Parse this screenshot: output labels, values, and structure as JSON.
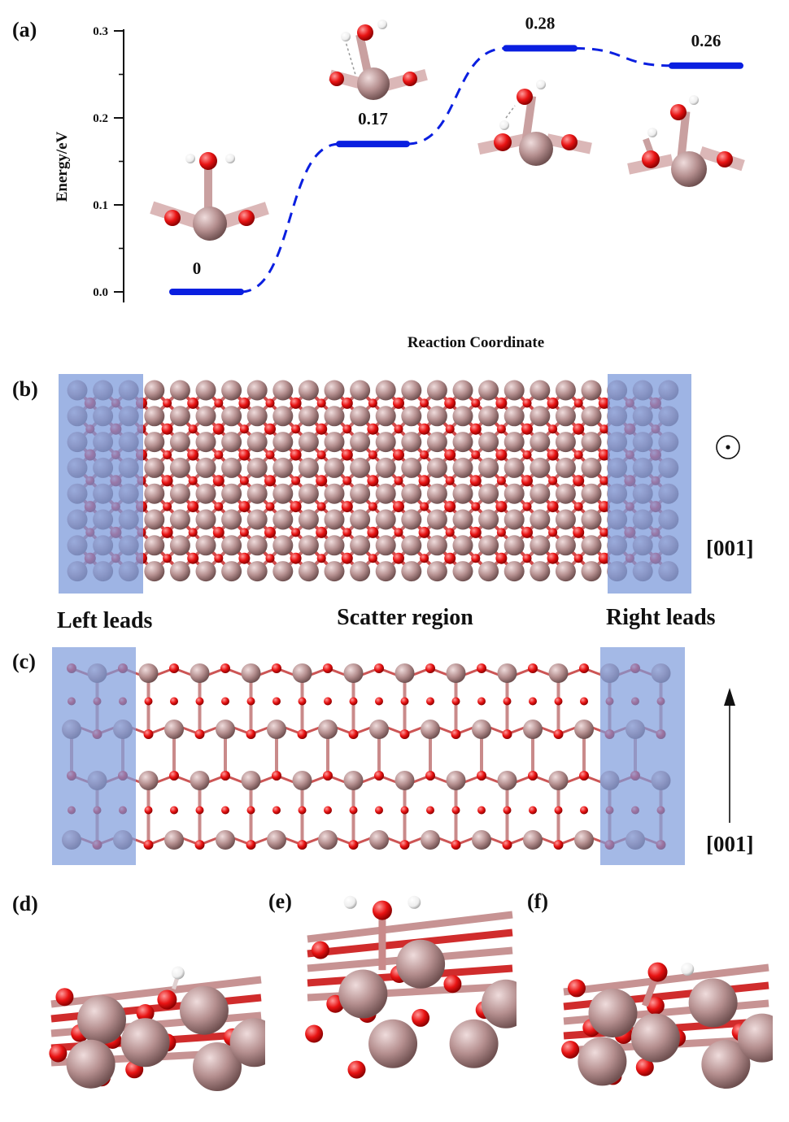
{
  "panels": {
    "a": {
      "label": "(a)",
      "chart_data": {
        "type": "line",
        "ylabel": "Energy/eV",
        "xlabel": "Reaction Coordinate",
        "ylim": [
          0.0,
          0.3
        ],
        "yticks": [
          "0.0",
          "0.1",
          "0.2",
          "0.3"
        ],
        "states": [
          {
            "step": 1,
            "energy": 0.0,
            "label": "0"
          },
          {
            "step": 2,
            "energy": 0.17,
            "label": "0.17"
          },
          {
            "step": 3,
            "energy": 0.28,
            "label": "0.28"
          },
          {
            "step": 4,
            "energy": 0.26,
            "label": "0.26"
          }
        ],
        "line_color": "#0a1fe0",
        "connector_style": "dashed",
        "grid": false
      }
    },
    "b": {
      "label": "(b)",
      "left_region": "Left leads",
      "middle_region": "Scatter region",
      "right_region": "Right leads",
      "direction_symbol": "out-of-plane",
      "direction": "[001]"
    },
    "c": {
      "label": "(c)",
      "direction_symbol": "up-arrow",
      "direction": "[001]"
    },
    "d": {
      "label": "(d)"
    },
    "e": {
      "label": "(e)"
    },
    "f": {
      "label": "(f)"
    }
  },
  "colors": {
    "metal_atom": "#b58f8f",
    "oxygen_atom": "#e81313",
    "hydrogen_atom": "#f2f2f2",
    "lead_region": "#7d9bdb",
    "path": "#0a1fe0"
  }
}
